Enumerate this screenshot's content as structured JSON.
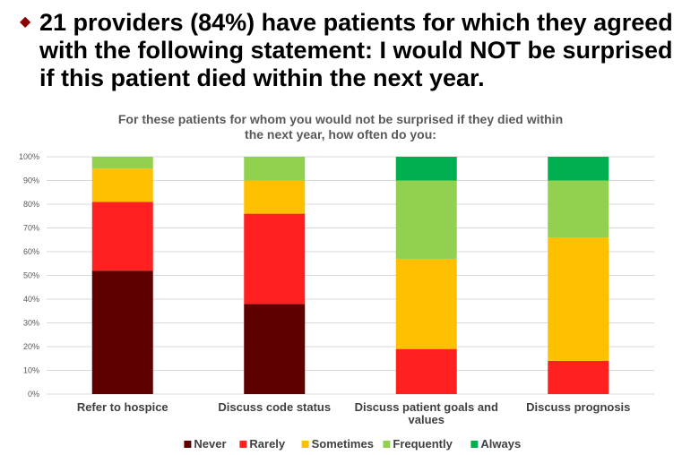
{
  "headline": {
    "bullet": "◆",
    "text": "21 providers (84%) have patients for which they agreed with the following statement: I would NOT be surprised if this patient died within the next year."
  },
  "chart_data": {
    "type": "bar",
    "stacked": true,
    "title": "For these patients for whom you would not be surprised if they died within the next year, how often do you:",
    "title_lines": [
      "For these patients for whom you would not be surprised if they died within",
      "the next year, how often do you:"
    ],
    "categories": [
      "Refer to hospice",
      "Discuss code status",
      "Discuss patient goals and values",
      "Discuss prognosis"
    ],
    "category_lines": [
      [
        "Refer to hospice"
      ],
      [
        "Discuss code status"
      ],
      [
        "Discuss patient goals and",
        "values"
      ],
      [
        "Discuss prognosis"
      ]
    ],
    "ylim": [
      0,
      100
    ],
    "ytick_labels": [
      "0%",
      "10%",
      "20%",
      "30%",
      "40%",
      "50%",
      "60%",
      "70%",
      "80%",
      "90%",
      "100%"
    ],
    "grid": true,
    "legend_position": "bottom",
    "series": [
      {
        "name": "Never",
        "color": "#5c0000",
        "values": [
          52,
          38,
          0,
          0
        ]
      },
      {
        "name": "Rarely",
        "color": "#ff2020",
        "values": [
          29,
          38,
          19,
          14
        ]
      },
      {
        "name": "Sometimes",
        "color": "#ffc000",
        "values": [
          14,
          14,
          38,
          52
        ]
      },
      {
        "name": "Frequently",
        "color": "#92d050",
        "values": [
          5,
          10,
          33,
          24
        ]
      },
      {
        "name": "Always",
        "color": "#00b050",
        "values": [
          0,
          0,
          10,
          10
        ]
      }
    ]
  }
}
